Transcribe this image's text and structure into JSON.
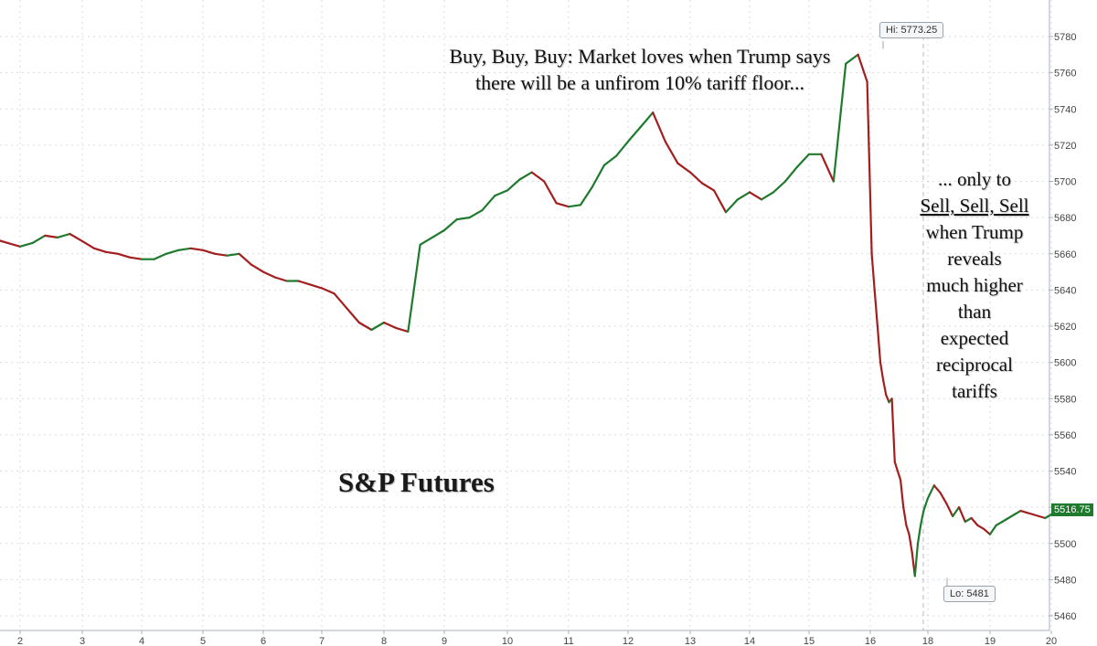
{
  "chart_data": {
    "type": "line",
    "title": "S&P Futures",
    "x_ticks": [
      "2",
      "3",
      "4",
      "5",
      "6",
      "7",
      "8",
      "9",
      "10",
      "11",
      "12",
      "13",
      "14",
      "15",
      "16",
      "18",
      "19",
      "20"
    ],
    "y_ticks": [
      5460,
      5480,
      5500,
      5520,
      5540,
      5560,
      5580,
      5600,
      5620,
      5640,
      5660,
      5680,
      5700,
      5720,
      5740,
      5760,
      5780
    ],
    "ylim": [
      5455,
      5800
    ],
    "grid": true,
    "series": [
      {
        "x": [
          1.6,
          1.8,
          2.0,
          2.2,
          2.4,
          2.6,
          2.8,
          3.0,
          3.2,
          3.4,
          3.6,
          3.8,
          4.0,
          4.2,
          4.4,
          4.6,
          4.8,
          5.0,
          5.2,
          5.4,
          5.6,
          5.8,
          6.0,
          6.2,
          6.4,
          6.6,
          6.8,
          7.0,
          7.2,
          7.4,
          7.6,
          7.8,
          8.0,
          8.2,
          8.4,
          8.6,
          8.8,
          9.0,
          9.2,
          9.4,
          9.6,
          9.8,
          10.0,
          10.2,
          10.4,
          10.6,
          10.8,
          11.0,
          11.2,
          11.4,
          11.6,
          11.8,
          12.0,
          12.2,
          12.4,
          12.6,
          12.8,
          13.0,
          13.2,
          13.4,
          13.6,
          13.8,
          14.0,
          14.2,
          14.4,
          14.6,
          14.8,
          15.0,
          15.2,
          15.4,
          15.6,
          15.8,
          15.95,
          16.05,
          16.15,
          16.25,
          16.35,
          16.45,
          16.55,
          16.65,
          16.75,
          16.85,
          16.95,
          17.05,
          17.15,
          17.25,
          17.35,
          17.45,
          17.55,
          17.65,
          17.75,
          17.85,
          18.0,
          18.1,
          18.2,
          18.3,
          18.4,
          18.5,
          18.6,
          18.7,
          18.8,
          18.9,
          19.0,
          19.1,
          19.2,
          19.3,
          19.4,
          19.5,
          19.6,
          19.7,
          19.8,
          19.9,
          20.0,
          20.1,
          20.2,
          20.3
        ],
        "y": [
          5668,
          5666,
          5664,
          5666,
          5670,
          5669,
          5671,
          5667,
          5663,
          5661,
          5660,
          5658,
          5657,
          5657,
          5660,
          5662,
          5663,
          5662,
          5660,
          5659,
          5660,
          5654,
          5650,
          5647,
          5645,
          5645,
          5643,
          5641,
          5638,
          5630,
          5622,
          5618,
          5622,
          5619,
          5617,
          5665,
          5669,
          5673,
          5679,
          5680,
          5684,
          5692,
          5695,
          5701,
          5705,
          5700,
          5688,
          5686,
          5687,
          5697,
          5709,
          5714,
          5722,
          5730,
          5738,
          5722,
          5710,
          5705,
          5699,
          5695,
          5683,
          5690,
          5694,
          5690,
          5694,
          5700,
          5708,
          5715,
          5715,
          5700,
          5765,
          5770,
          5755,
          5660,
          5640,
          5620,
          5600,
          5590,
          5582,
          5578,
          5580,
          5545,
          5540,
          5535,
          5520,
          5510,
          5505,
          5495,
          5482,
          5500,
          5510,
          5518,
          5525,
          5532,
          5528,
          5522,
          5515,
          5520,
          5512,
          5514,
          5510,
          5508,
          5505,
          5510,
          5512,
          5514,
          5516,
          5518,
          5517,
          5516,
          5515,
          5514,
          5516,
          5517,
          5516,
          5517
        ]
      }
    ],
    "annotations": [
      "Buy, Buy, Buy: Market loves when Trump says there will be a unfirom 10% tariff floor...",
      "... only to Sell, Sell, Sell when Trump reveals much higher than expected reciprocal tariffs"
    ],
    "hi_label": "Hi: 5773.25",
    "lo_label": "Lo: 5481",
    "last_label": "5516.75",
    "colors": {
      "up": "#1f7a2e",
      "down": "#a31e1e",
      "grid": "#d7dbe0",
      "axis_text": "#444444",
      "last_bg": "#1f7a2e"
    }
  },
  "annotations_text": {
    "buy_line1": "Buy, Buy, Buy: Market loves when Trump says",
    "buy_line2": "there will be a unfirom 10% tariff floor...",
    "sell_1": "... only to",
    "sell_2": "Sell, Sell, Sell",
    "sell_3": "when Trump",
    "sell_4": "reveals",
    "sell_5": "much higher",
    "sell_6": "than",
    "sell_7": "expected",
    "sell_8": "reciprocal",
    "sell_9": "tariffs"
  }
}
